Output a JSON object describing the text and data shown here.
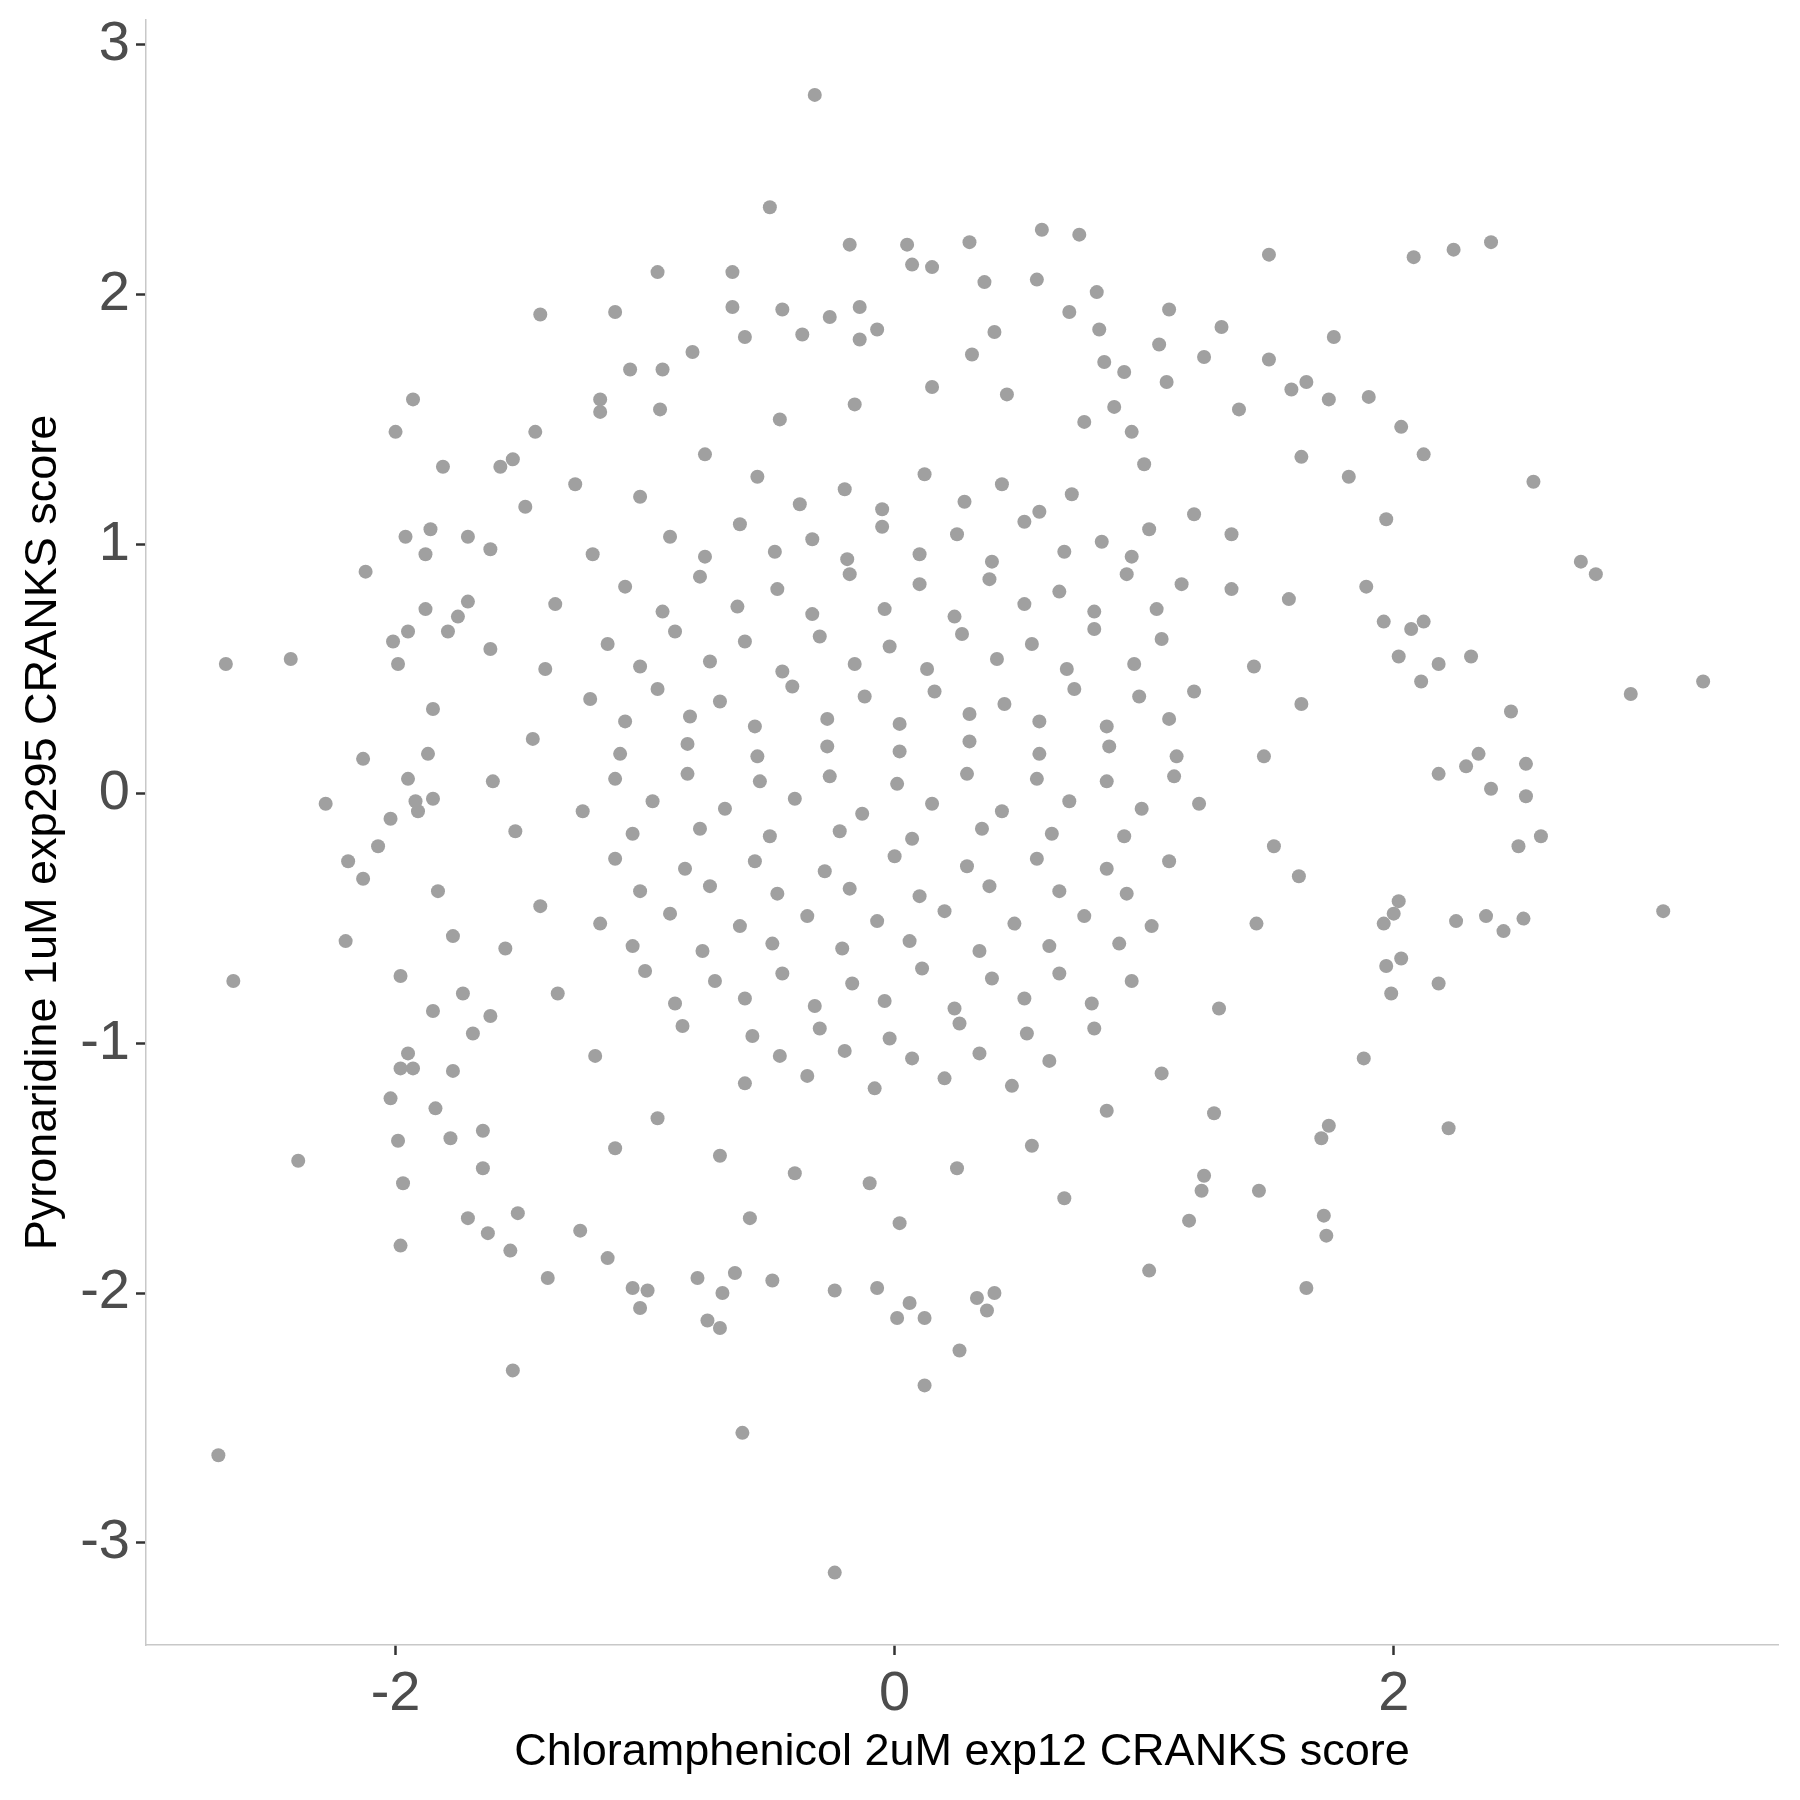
{
  "chart_data": {
    "type": "scatter",
    "xlabel": "Chloramphenicol 2uM exp12 CRANKS score",
    "ylabel": "Pyronaridine 1uM exp295 CRANKS score",
    "xlim": [
      -3.0,
      3.54
    ],
    "ylim": [
      -3.41,
      3.1
    ],
    "xticks": [
      -2,
      0,
      2
    ],
    "yticks": [
      -3,
      -2,
      -1,
      0,
      1,
      2,
      3
    ],
    "marker": "circle",
    "series": [
      {
        "color": "#a0a0a0",
        "x": [
          -0.32,
          -0.5,
          0.59,
          0.74,
          -0.18,
          0.05,
          0.3,
          2.39,
          2.24,
          2.08,
          1.5,
          -0.95,
          0.07,
          0.15,
          -0.65,
          0.36,
          0.57,
          -1.42,
          -1.12,
          0.81,
          1.1,
          -0.45,
          1.31,
          1.76,
          -0.81,
          -1.93,
          -2.0,
          -1.81,
          -2.12,
          -1.96,
          -1.86,
          -1.88,
          -1.71,
          -1.62,
          -1.48,
          -2.68,
          -2.42,
          -2.28,
          -2.13,
          -2.19,
          -2.07,
          -2.13,
          -2.2,
          -2.65,
          -1.98,
          -2.02,
          -1.95,
          -1.98,
          -1.93,
          -2.39,
          -1.99,
          -1.97,
          -1.98,
          -1.84,
          -1.78,
          -1.77,
          -1.65,
          -1.65,
          -1.71,
          -1.63,
          -1.54,
          -1.51,
          -1.53,
          -2.71,
          -1.39,
          -1.26,
          -1.15,
          -1.02,
          -1.05,
          -0.99,
          -0.79,
          -0.69,
          -0.64,
          -0.75,
          -0.7,
          -0.49,
          -0.61,
          -0.24,
          -0.07,
          0.06,
          0.01,
          0.12,
          0.26,
          0.12,
          -0.24,
          0.33,
          0.4,
          0.37,
          1.02,
          1.65,
          1.73,
          1.71,
          1.74,
          2.22,
          1.72,
          1.18,
          1.46,
          1.23,
          1.24,
          2.18,
          2.03,
          2.02,
          2.0,
          1.96,
          1.97,
          1.99,
          1.88,
          3.08,
          2.52,
          2.44,
          2.37,
          2.25,
          2.59,
          2.5,
          2.53,
          2.39,
          2.34,
          2.29,
          2.53,
          2.47,
          2.18,
          3.24,
          2.95,
          2.31,
          2.18,
          2.11,
          2.02,
          2.07,
          2.12,
          2.75,
          2.81,
          2.56,
          2.12,
          2.03,
          1.9,
          1.74,
          1.82,
          1.63,
          1.97,
          1.89,
          1.96,
          1.65,
          1.59,
          1.5,
          1.38,
          1.24,
          1.35,
          0.88,
          1.09,
          0.92,
          1.06,
          0.84,
          0.82,
          0.7,
          0.4,
          -0.26,
          -0.14,
          -0.14,
          -0.07,
          -0.37,
          -0.6,
          -0.65,
          -1.06,
          -0.93,
          -1.18,
          -1.18,
          -0.94,
          -1.44,
          -1.53,
          -1.58,
          -1.71,
          -1.79,
          -1.75,
          -1.88,
          -1.95,
          -2.01,
          -1.99,
          -1.85,
          -1.87,
          -1.95,
          -2.02,
          -1.92,
          -1.85,
          -1.91,
          -1.83,
          -1.77,
          -1.73,
          -1.85,
          -1.62,
          -1.69,
          -1.4,
          -1.45,
          -1.52,
          -1.42,
          -1.35,
          -1.2,
          -0.95,
          -0.7,
          -0.4,
          -0.1,
          0.25,
          0.55,
          0.85,
          1.07,
          1.3,
          1.45,
          1.52,
          1.48,
          1.44,
          1.35,
          1.2,
          1.0,
          0.76,
          0.45,
          0.15,
          -0.16,
          -0.46,
          -0.76,
          -1.02,
          -1.21,
          -1.36,
          1.62,
          1.63,
          -1.61,
          -1.56,
          0.02,
          0.31,
          -1.28,
          1.28,
          -1.12,
          0.68,
          1.58,
          -1.62,
          0.95,
          -0.58,
          -0.55,
          -0.2,
          0.12,
          0.43,
          0.71,
          -0.9,
          -0.62,
          -0.33,
          -0.05,
          0.25,
          0.52,
          0.83,
          1.02,
          -1.08,
          -0.78,
          -0.47,
          -0.18,
          0.1,
          0.38,
          0.66,
          0.93,
          1.15,
          -1.15,
          -0.88,
          -0.6,
          -0.3,
          -0.02,
          0.27,
          0.55,
          0.8,
          1.07,
          -1.22,
          -0.95,
          -0.7,
          -0.41,
          -0.12,
          0.16,
          0.44,
          0.72,
          0.98,
          1.2,
          -1.1,
          -0.83,
          -0.55,
          -0.27,
          0.02,
          0.3,
          0.58,
          0.86,
          1.13,
          -1.25,
          -0.97,
          -0.68,
          -0.4,
          -0.13,
          0.15,
          0.43,
          0.7,
          0.99,
          1.22,
          -1.12,
          -0.84,
          -0.56,
          -0.28,
          0.0,
          0.29,
          0.57,
          0.85,
          1.1,
          -1.18,
          -0.9,
          -0.62,
          -0.35,
          -0.07,
          0.2,
          0.48,
          0.76,
          1.03,
          -1.0,
          -0.72,
          -0.45,
          -0.17,
          0.11,
          0.39,
          0.66,
          0.95,
          -0.85,
          -0.57,
          -0.3,
          -0.02,
          0.26,
          0.53,
          0.8,
          -0.6,
          -0.35,
          -0.08,
          0.2,
          0.47,
          -0.38,
          -0.05,
          0.28,
          0.58,
          -0.76,
          -0.48,
          -0.19,
          0.1,
          0.39,
          0.68,
          0.95,
          -0.93,
          -0.63,
          -0.33,
          -0.04,
          0.24,
          0.52,
          0.8,
          1.05,
          -1.02,
          -0.74,
          -0.45,
          -0.16,
          0.13,
          0.41,
          0.69,
          0.96,
          -1.08,
          -0.82,
          -0.56,
          -0.27,
          0.02,
          0.3,
          0.58,
          0.85,
          1.1,
          -1.12,
          -0.83,
          -0.54,
          -0.26,
          0.01,
          0.29,
          0.57,
          0.85,
          1.12,
          -1.05,
          -0.78,
          -0.5,
          -0.22,
          0.07,
          0.35,
          0.63,
          0.92,
          -1.02,
          -0.74,
          -0.47,
          -0.18,
          0.1,
          0.38,
          0.66,
          0.93,
          -1.05,
          -0.77,
          -0.49,
          -0.21,
          0.06,
          0.34,
          0.62,
          0.9,
          -0.88,
          -0.6,
          -0.32,
          -0.04,
          0.24,
          0.52,
          0.79,
          -0.46,
          -0.2,
          0.07,
          0.34,
          0.62
        ],
        "values": [
          2.8,
          2.35,
          2.26,
          2.24,
          2.2,
          2.2,
          2.21,
          2.21,
          2.18,
          2.15,
          2.16,
          2.09,
          2.12,
          2.11,
          2.09,
          2.05,
          2.06,
          1.92,
          1.93,
          2.01,
          1.94,
          1.94,
          1.87,
          1.83,
          1.77,
          1.58,
          1.45,
          1.31,
          0.89,
          1.03,
          1.06,
          0.96,
          1.03,
          0.98,
          1.15,
          0.52,
          0.54,
          -0.04,
          0.14,
          -0.27,
          -0.21,
          -0.34,
          -0.59,
          -0.75,
          -0.73,
          -1.22,
          -1.04,
          -1.1,
          -1.1,
          -1.47,
          -1.39,
          -1.56,
          -1.81,
          -1.26,
          -1.38,
          -1.11,
          -1.35,
          -1.5,
          -1.7,
          -1.76,
          -1.83,
          -1.68,
          -2.31,
          -2.65,
          -1.94,
          -1.75,
          -1.86,
          -2.06,
          -1.98,
          -1.99,
          -1.94,
          -2.0,
          -1.92,
          -2.11,
          -2.14,
          -1.95,
          -2.56,
          -1.99,
          -1.98,
          -2.04,
          -2.1,
          -2.1,
          -2.23,
          -2.37,
          -3.12,
          -2.02,
          -2.0,
          -2.07,
          -1.91,
          -1.98,
          -1.77,
          -1.38,
          -1.33,
          -1.34,
          -1.69,
          -1.71,
          -1.59,
          -1.59,
          -1.53,
          -0.76,
          -0.66,
          -0.43,
          -0.48,
          -0.52,
          -0.69,
          -0.8,
          -1.06,
          -0.47,
          -0.5,
          -0.55,
          -0.49,
          -0.51,
          -0.17,
          -0.21,
          -0.01,
          0.02,
          0.16,
          0.11,
          0.12,
          0.33,
          0.08,
          0.45,
          0.4,
          0.55,
          0.52,
          0.45,
          0.55,
          0.66,
          0.69,
          0.93,
          0.88,
          1.25,
          1.36,
          1.47,
          1.59,
          1.58,
          1.27,
          1.35,
          1.1,
          0.83,
          0.69,
          1.65,
          1.62,
          1.74,
          1.54,
          1.75,
          1.04,
          1.55,
          1.65,
          1.69,
          1.8,
          1.73,
          1.86,
          1.93,
          1.85,
          1.91,
          1.95,
          1.82,
          1.86,
          1.84,
          1.83,
          1.95,
          1.7,
          1.7,
          1.58,
          1.53,
          1.54,
          1.45,
          1.34,
          1.31,
          0.77,
          0.65,
          0.71,
          0.74,
          0.65,
          0.61,
          0.52,
          0.34,
          0.16,
          0.06,
          -0.1,
          -0.03,
          -0.02,
          -0.07,
          -0.39,
          -0.57,
          -0.8,
          -0.87,
          -0.89,
          -0.96,
          0.5,
          0.22,
          -0.15,
          -0.45,
          -0.8,
          -1.05,
          -1.3,
          -1.45,
          -1.52,
          -1.56,
          -1.5,
          -1.41,
          -1.27,
          -1.12,
          -0.86,
          -0.52,
          -0.21,
          0.15,
          0.51,
          0.82,
          1.12,
          1.32,
          1.49,
          1.6,
          1.63,
          1.56,
          1.5,
          1.36,
          1.19,
          0.96,
          0.76,
          -0.33,
          0.36,
          0.05,
          -0.62,
          -1.72,
          1.76,
          1.24,
          -1.28,
          -1.42,
          -1.62,
          0.78,
          0.58,
          1.45,
          -1.7,
          1.27,
          1.22,
          1.28,
          1.24,
          1.2,
          1.03,
          1.08,
          1.02,
          1.07,
          1.04,
          1.09,
          1.01,
          1.06,
          0.83,
          0.87,
          0.82,
          0.88,
          0.84,
          0.86,
          0.81,
          0.88,
          0.84,
          0.6,
          0.65,
          0.61,
          0.63,
          0.59,
          0.64,
          0.6,
          0.66,
          0.62,
          0.38,
          0.42,
          0.37,
          0.43,
          0.39,
          0.41,
          0.36,
          0.42,
          0.39,
          0.41,
          0.16,
          0.2,
          0.15,
          0.19,
          0.17,
          0.21,
          0.16,
          0.19,
          0.15,
          -0.07,
          -0.03,
          -0.06,
          -0.02,
          -0.08,
          -0.04,
          -0.07,
          -0.03,
          -0.06,
          -0.04,
          -0.26,
          -0.3,
          -0.27,
          -0.31,
          -0.25,
          -0.29,
          -0.26,
          -0.3,
          -0.27,
          -0.52,
          -0.48,
          -0.53,
          -0.49,
          -0.51,
          -0.47,
          -0.52,
          -0.49,
          -0.53,
          -0.71,
          -0.75,
          -0.72,
          -0.76,
          -0.7,
          -0.74,
          -0.72,
          -0.75,
          -0.93,
          -0.97,
          -0.94,
          -0.98,
          -0.92,
          -0.96,
          -0.94,
          -1.16,
          -1.13,
          -1.18,
          -1.14,
          -1.17,
          1.16,
          1.14,
          1.17,
          1.13,
          0.95,
          0.97,
          0.94,
          0.96,
          0.93,
          0.97,
          0.95,
          0.73,
          0.75,
          0.72,
          0.74,
          0.71,
          0.76,
          0.73,
          0.74,
          0.51,
          0.53,
          0.49,
          0.52,
          0.5,
          0.54,
          0.5,
          0.52,
          0.29,
          0.31,
          0.27,
          0.3,
          0.28,
          0.32,
          0.29,
          0.27,
          0.3,
          0.06,
          0.08,
          0.05,
          0.07,
          0.04,
          0.08,
          0.06,
          0.05,
          0.07,
          -0.16,
          -0.14,
          -0.17,
          -0.15,
          -0.18,
          -0.14,
          -0.16,
          -0.17,
          -0.39,
          -0.37,
          -0.4,
          -0.38,
          -0.41,
          -0.37,
          -0.39,
          -0.4,
          -0.61,
          -0.63,
          -0.6,
          -0.62,
          -0.59,
          -0.63,
          -0.61,
          -0.6,
          -0.84,
          -0.82,
          -0.85,
          -0.83,
          -0.86,
          -0.82,
          -0.84,
          -1.05,
          -1.03,
          -1.06,
          -1.04,
          -1.07
        ]
      }
    ]
  }
}
